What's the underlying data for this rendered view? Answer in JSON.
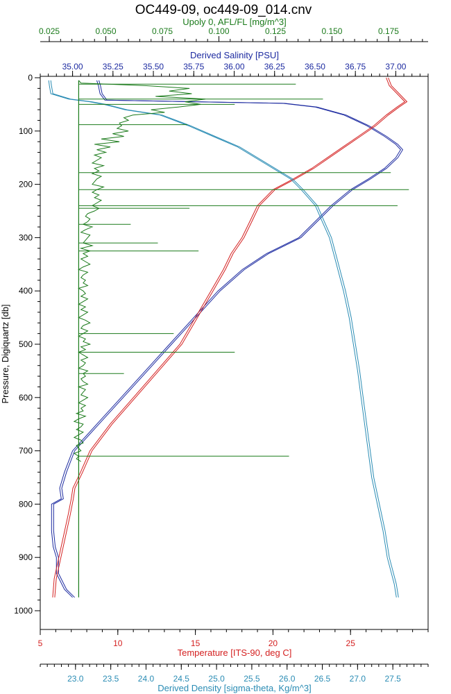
{
  "chart_data": {
    "type": "line",
    "title": "OC449-09, oc449-09_014.cnv",
    "ylabel": "Pressure, Digiquartz [db]",
    "ylim": [
      0,
      1000
    ],
    "y_inverted": true,
    "y_ticks": [
      "0",
      "100",
      "200",
      "300",
      "400",
      "500",
      "600",
      "700",
      "800",
      "900",
      "1000"
    ],
    "grid": false,
    "axes": {
      "fluorescence": {
        "label": "Upoly 0, AFL/FL [mg/m^3]",
        "color": "#1a7a1a",
        "position": "top-outer",
        "range": [
          0.021,
          0.1925
        ],
        "ticks": [
          "0.025",
          "0.050",
          "0.075",
          "0.100",
          "0.125",
          "0.150",
          "0.175"
        ]
      },
      "salinity": {
        "label": "Derived Salinity [PSU]",
        "color": "#1c2aa0",
        "position": "top-inner",
        "range": [
          34.8,
          37.2
        ],
        "ticks": [
          "35.00",
          "35.25",
          "35.50",
          "35.75",
          "36.00",
          "36.25",
          "36.50",
          "36.75",
          "37.00"
        ]
      },
      "temperature": {
        "label": "Temperature [ITS-90, deg C]",
        "color": "#d42020",
        "position": "bottom-inner",
        "range": [
          5,
          30
        ],
        "ticks": [
          "5",
          "10",
          "15",
          "20",
          "25"
        ]
      },
      "density": {
        "label": "Derived Density [sigma-theta, Kg/m^3]",
        "color": "#2a8cb4",
        "position": "bottom-outer",
        "range": [
          22.5,
          28.0
        ],
        "ticks": [
          "23.0",
          "23.5",
          "24.0",
          "24.5",
          "25.0",
          "25.5",
          "26.0",
          "26.5",
          "27.0",
          "27.5"
        ]
      }
    },
    "series": [
      {
        "axis": "salinity",
        "pressure": [
          5,
          15,
          30,
          42,
          48,
          55,
          70,
          90,
          110,
          125,
          135,
          150,
          170,
          190,
          210,
          240,
          270,
          300,
          330,
          360,
          400,
          450,
          500,
          550,
          600,
          650,
          700,
          740,
          770,
          790,
          800,
          850,
          880,
          900,
          930,
          960,
          975
        ],
        "values": [
          35.15,
          35.16,
          35.17,
          35.2,
          36.3,
          36.5,
          36.68,
          36.82,
          36.93,
          37.0,
          37.03,
          37.0,
          36.93,
          36.83,
          36.72,
          36.6,
          36.5,
          36.4,
          36.2,
          36.05,
          35.9,
          35.75,
          35.6,
          35.45,
          35.3,
          35.15,
          35.0,
          34.95,
          34.92,
          34.93,
          34.87,
          34.87,
          34.88,
          34.9,
          34.9,
          34.95,
          35.0
        ]
      },
      {
        "axis": "temperature",
        "pressure": [
          0,
          15,
          30,
          45,
          55,
          70,
          90,
          110,
          130,
          150,
          170,
          190,
          210,
          240,
          270,
          300,
          330,
          360,
          400,
          450,
          500,
          550,
          600,
          650,
          700,
          740,
          770,
          790,
          820,
          860,
          900,
          940,
          975
        ],
        "values": [
          27.3,
          27.5,
          28.0,
          28.5,
          28.0,
          27.3,
          26.5,
          25.5,
          24.5,
          23.5,
          22.5,
          21.3,
          20.0,
          19.0,
          18.5,
          18.0,
          17.3,
          16.8,
          16.0,
          15.0,
          14.0,
          12.5,
          11.0,
          9.5,
          8.2,
          7.6,
          7.1,
          7.0,
          6.8,
          6.5,
          6.2,
          5.9,
          5.8
        ]
      },
      {
        "axis": "density",
        "pressure": [
          5,
          15,
          30,
          40,
          45,
          50,
          55,
          60,
          70,
          90,
          110,
          130,
          150,
          170,
          190,
          210,
          240,
          270,
          300,
          350,
          400,
          450,
          500,
          550,
          600,
          650,
          700,
          750,
          800,
          850,
          900,
          950,
          975
        ],
        "values": [
          22.62,
          22.63,
          22.65,
          22.9,
          23.2,
          23.4,
          23.55,
          23.7,
          24.2,
          24.6,
          24.95,
          25.3,
          25.55,
          25.8,
          26.05,
          26.2,
          26.4,
          26.5,
          26.6,
          26.7,
          26.8,
          26.88,
          26.94,
          27.0,
          27.05,
          27.1,
          27.15,
          27.2,
          27.28,
          27.36,
          27.42,
          27.52,
          27.55
        ]
      },
      {
        "axis": "fluorescence",
        "baseline": 0.038,
        "pressure": [
          5,
          10,
          15,
          20,
          25,
          30,
          35,
          40,
          45,
          50,
          55,
          60,
          65,
          70,
          75,
          80,
          85,
          90,
          95,
          100,
          105,
          110,
          115,
          120,
          125,
          130,
          135,
          140,
          145,
          150,
          155,
          160,
          165,
          170,
          175,
          180,
          185,
          190,
          195,
          200,
          205,
          210,
          215,
          220,
          225,
          230,
          235,
          240,
          245,
          250,
          255,
          260,
          265,
          270,
          275,
          280,
          285,
          290,
          295,
          300,
          305,
          310,
          315,
          320,
          325,
          330,
          335,
          340,
          345,
          350,
          355,
          360,
          365,
          370,
          375,
          380,
          385,
          390,
          395,
          400,
          405,
          410,
          415,
          420,
          425,
          430,
          435,
          440,
          445,
          450,
          455,
          460,
          465,
          470,
          475,
          480,
          485,
          490,
          495,
          500,
          505,
          510,
          515,
          520,
          525,
          530,
          535,
          540,
          545,
          550,
          555,
          560,
          565,
          570,
          575,
          580,
          585,
          590,
          595,
          600,
          605,
          610,
          615,
          620,
          625,
          630,
          635,
          640,
          645,
          650,
          655,
          660,
          665,
          670,
          675,
          680,
          685,
          690,
          695,
          700,
          705,
          710,
          715,
          720
        ],
        "values": [
          0.038,
          0.039,
          0.068,
          0.087,
          0.078,
          0.088,
          0.072,
          0.094,
          0.085,
          0.092,
          0.082,
          0.07,
          0.076,
          0.062,
          0.058,
          0.06,
          0.056,
          0.057,
          0.055,
          0.06,
          0.053,
          0.058,
          0.048,
          0.056,
          0.045,
          0.052,
          0.046,
          0.05,
          0.045,
          0.048,
          0.046,
          0.044,
          0.049,
          0.045,
          0.047,
          0.044,
          0.048,
          0.046,
          0.045,
          0.044,
          0.049,
          0.046,
          0.044,
          0.047,
          0.045,
          0.048,
          0.046,
          0.044,
          0.047,
          0.045,
          0.042,
          0.041,
          0.043,
          0.042,
          0.04,
          0.044,
          0.041,
          0.039,
          0.043,
          0.042,
          0.041,
          0.04,
          0.044,
          0.039,
          0.043,
          0.04,
          0.042,
          0.039,
          0.041,
          0.043,
          0.04,
          0.038,
          0.042,
          0.04,
          0.039,
          0.041,
          0.04,
          0.042,
          0.038,
          0.04,
          0.041,
          0.039,
          0.042,
          0.04,
          0.038,
          0.041,
          0.039,
          0.042,
          0.04,
          0.038,
          0.041,
          0.043,
          0.04,
          0.039,
          0.042,
          0.04,
          0.038,
          0.041,
          0.04,
          0.043,
          0.039,
          0.041,
          0.038,
          0.04,
          0.042,
          0.039,
          0.041,
          0.04,
          0.038,
          0.042,
          0.04,
          0.041,
          0.039,
          0.04,
          0.042,
          0.038,
          0.041,
          0.04,
          0.039,
          0.042,
          0.04,
          0.038,
          0.041,
          0.039,
          0.04,
          0.037,
          0.041,
          0.038,
          0.036,
          0.04,
          0.039,
          0.037,
          0.04,
          0.038,
          0.036,
          0.039,
          0.04,
          0.037,
          0.038,
          0.039,
          0.036,
          0.038,
          0.037,
          0.039
        ],
        "spikes": [
          {
            "pressure": 12,
            "value": 0.134
          },
          {
            "pressure": 40,
            "value": 0.146
          },
          {
            "pressure": 50,
            "value": 0.107
          },
          {
            "pressure": 88,
            "value": 0.086
          },
          {
            "pressure": 178,
            "value": 0.176
          },
          {
            "pressure": 210,
            "value": 0.184
          },
          {
            "pressure": 240,
            "value": 0.179
          },
          {
            "pressure": 245,
            "value": 0.087
          },
          {
            "pressure": 275,
            "value": 0.061
          },
          {
            "pressure": 310,
            "value": 0.073
          },
          {
            "pressure": 325,
            "value": 0.091
          },
          {
            "pressure": 480,
            "value": 0.08
          },
          {
            "pressure": 515,
            "value": 0.107
          },
          {
            "pressure": 555,
            "value": 0.058
          },
          {
            "pressure": 710,
            "value": 0.131
          }
        ]
      }
    ]
  }
}
